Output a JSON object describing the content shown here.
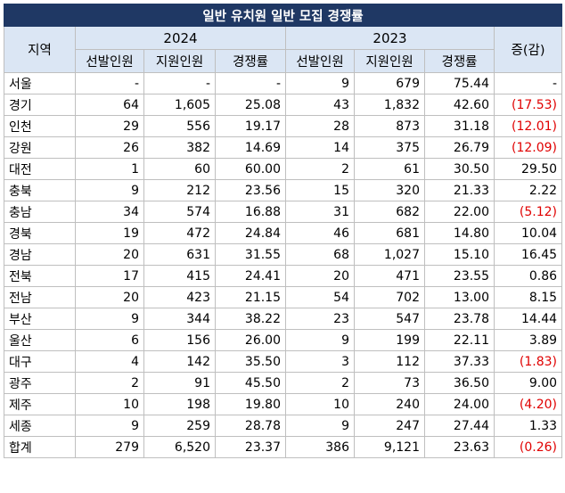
{
  "title": "일반 유치원 일반 모집 경쟁률",
  "headers": {
    "region": "지역",
    "year1": "2024",
    "year2": "2023",
    "change": "증(감)",
    "sub": [
      "선발인원",
      "지원인원",
      "경쟁률",
      "선발인원",
      "지원인원",
      "경쟁률"
    ]
  },
  "rows": [
    {
      "region": "서울",
      "s24": "-",
      "a24": "-",
      "r24": "-",
      "s23": "9",
      "a23": "679",
      "r23": "75.44",
      "chg": "-",
      "neg": false
    },
    {
      "region": "경기",
      "s24": "64",
      "a24": "1,605",
      "r24": "25.08",
      "s23": "43",
      "a23": "1,832",
      "r23": "42.60",
      "chg": "(17.53)",
      "neg": true
    },
    {
      "region": "인천",
      "s24": "29",
      "a24": "556",
      "r24": "19.17",
      "s23": "28",
      "a23": "873",
      "r23": "31.18",
      "chg": "(12.01)",
      "neg": true
    },
    {
      "region": "강원",
      "s24": "26",
      "a24": "382",
      "r24": "14.69",
      "s23": "14",
      "a23": "375",
      "r23": "26.79",
      "chg": "(12.09)",
      "neg": true
    },
    {
      "region": "대전",
      "s24": "1",
      "a24": "60",
      "r24": "60.00",
      "s23": "2",
      "a23": "61",
      "r23": "30.50",
      "chg": "29.50",
      "neg": false
    },
    {
      "region": "충북",
      "s24": "9",
      "a24": "212",
      "r24": "23.56",
      "s23": "15",
      "a23": "320",
      "r23": "21.33",
      "chg": "2.22",
      "neg": false
    },
    {
      "region": "충남",
      "s24": "34",
      "a24": "574",
      "r24": "16.88",
      "s23": "31",
      "a23": "682",
      "r23": "22.00",
      "chg": "(5.12)",
      "neg": true
    },
    {
      "region": "경북",
      "s24": "19",
      "a24": "472",
      "r24": "24.84",
      "s23": "46",
      "a23": "681",
      "r23": "14.80",
      "chg": "10.04",
      "neg": false
    },
    {
      "region": "경남",
      "s24": "20",
      "a24": "631",
      "r24": "31.55",
      "s23": "68",
      "a23": "1,027",
      "r23": "15.10",
      "chg": "16.45",
      "neg": false
    },
    {
      "region": "전북",
      "s24": "17",
      "a24": "415",
      "r24": "24.41",
      "s23": "20",
      "a23": "471",
      "r23": "23.55",
      "chg": "0.86",
      "neg": false
    },
    {
      "region": "전남",
      "s24": "20",
      "a24": "423",
      "r24": "21.15",
      "s23": "54",
      "a23": "702",
      "r23": "13.00",
      "chg": "8.15",
      "neg": false
    },
    {
      "region": "부산",
      "s24": "9",
      "a24": "344",
      "r24": "38.22",
      "s23": "23",
      "a23": "547",
      "r23": "23.78",
      "chg": "14.44",
      "neg": false
    },
    {
      "region": "울산",
      "s24": "6",
      "a24": "156",
      "r24": "26.00",
      "s23": "9",
      "a23": "199",
      "r23": "22.11",
      "chg": "3.89",
      "neg": false
    },
    {
      "region": "대구",
      "s24": "4",
      "a24": "142",
      "r24": "35.50",
      "s23": "3",
      "a23": "112",
      "r23": "37.33",
      "chg": "(1.83)",
      "neg": true
    },
    {
      "region": "광주",
      "s24": "2",
      "a24": "91",
      "r24": "45.50",
      "s23": "2",
      "a23": "73",
      "r23": "36.50",
      "chg": "9.00",
      "neg": false
    },
    {
      "region": "제주",
      "s24": "10",
      "a24": "198",
      "r24": "19.80",
      "s23": "10",
      "a23": "240",
      "r23": "24.00",
      "chg": "(4.20)",
      "neg": true
    },
    {
      "region": "세종",
      "s24": "9",
      "a24": "259",
      "r24": "28.78",
      "s23": "9",
      "a23": "247",
      "r23": "27.44",
      "chg": "1.33",
      "neg": false
    },
    {
      "region": "합계",
      "s24": "279",
      "a24": "6,520",
      "r24": "23.37",
      "s23": "386",
      "a23": "9,121",
      "r23": "23.63",
      "chg": "(0.26)",
      "neg": true
    }
  ],
  "colors": {
    "title_bg": "#1f3864",
    "header_bg": "#dbe6f4",
    "negative": "#e00000"
  }
}
